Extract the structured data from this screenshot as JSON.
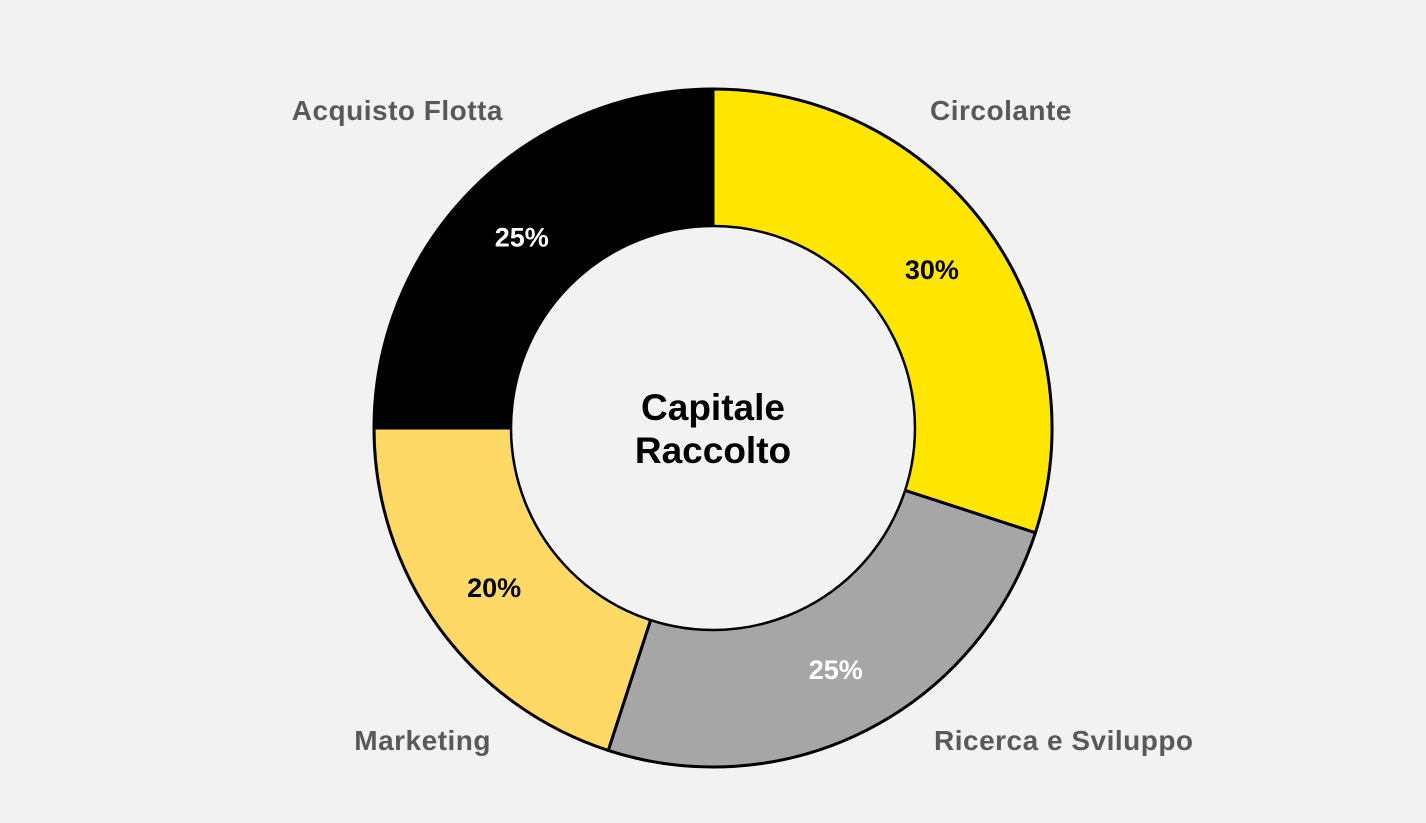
{
  "chart_data": {
    "type": "pie",
    "variant": "donut",
    "title": "",
    "center_label": [
      "Capitale",
      "Raccolto"
    ],
    "categories": [
      "Circolante",
      "Ricerca e Sviluppo",
      "Marketing",
      "Acquisto Flotta"
    ],
    "values": [
      30,
      25,
      20,
      25
    ],
    "value_labels": [
      "30%",
      "25%",
      "20%",
      "25%"
    ],
    "colors": [
      "#ffe600",
      "#a6a6a6",
      "#ffd966",
      "#000000"
    ],
    "value_label_colors": [
      "#000000",
      "#ffffff",
      "#000000",
      "#ffffff"
    ],
    "start_angle_deg": 0,
    "direction": "clockwise",
    "legend": "none"
  }
}
